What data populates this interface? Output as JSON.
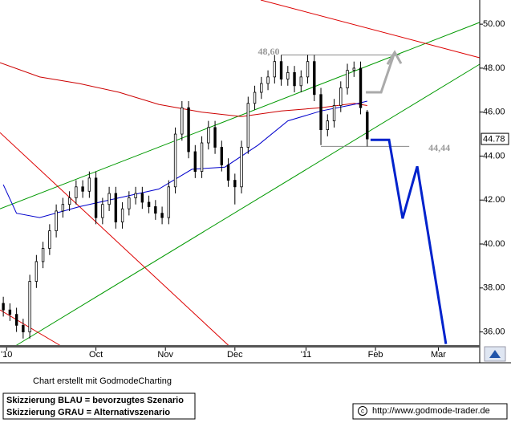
{
  "chart_data": {
    "type": "candlestick",
    "xlim": [
      0,
      145
    ],
    "ylim": [
      35.4,
      51.1
    ],
    "xticks": [
      {
        "value": 2,
        "label": "'10"
      },
      {
        "value": 29,
        "label": "Oct"
      },
      {
        "value": 50,
        "label": "Nov"
      },
      {
        "value": 71,
        "label": "Dec"
      },
      {
        "value": 92.5,
        "label": "'11"
      },
      {
        "value": 113.5,
        "label": "Feb"
      },
      {
        "value": 132.5,
        "label": "Mar"
      }
    ],
    "yticks": [
      {
        "value": 36,
        "label": "36.00"
      },
      {
        "value": 38,
        "label": "38.00"
      },
      {
        "value": 40,
        "label": "40.00"
      },
      {
        "value": 42,
        "label": "42.00"
      },
      {
        "value": 44,
        "label": "44.00"
      },
      {
        "value": 46,
        "label": "46.00"
      },
      {
        "value": 48,
        "label": "48.00"
      },
      {
        "value": 50,
        "label": "50.00"
      }
    ],
    "color": "#000000",
    "x": [
      1,
      3,
      5,
      7,
      9,
      11,
      13,
      15,
      17,
      19,
      21,
      23,
      25,
      27,
      29,
      31,
      33,
      35,
      37,
      39,
      41,
      43,
      45,
      47,
      49,
      51,
      53,
      55,
      57,
      59,
      61,
      63,
      65,
      67,
      69,
      71,
      73,
      75,
      77,
      79,
      81,
      83,
      85,
      87,
      89,
      91,
      93,
      95,
      97,
      99,
      101,
      103,
      105,
      107,
      109,
      111
    ],
    "open": [
      37.3,
      37.0,
      36.8,
      36.3,
      36.0,
      38.3,
      39.2,
      39.8,
      40.6,
      41.5,
      41.8,
      42.1,
      42.6,
      42.4,
      43.0,
      41.2,
      41.8,
      42.3,
      41.0,
      41.6,
      42.1,
      42.3,
      41.9,
      41.7,
      41.4,
      41.2,
      42.6,
      45.0,
      46.2,
      44.2,
      43.3,
      44.6,
      45.3,
      44.4,
      43.6,
      42.9,
      42.6,
      44.4,
      46.4,
      46.9,
      47.3,
      47.6,
      48.3,
      47.5,
      47.8,
      47.2,
      47.6,
      48.3,
      46.8,
      45.2,
      45.6,
      46.3,
      47.1,
      47.9,
      48.0,
      46.0
    ],
    "high": [
      37.6,
      37.3,
      37.1,
      36.6,
      38.6,
      39.5,
      40.1,
      40.9,
      41.8,
      42.1,
      42.4,
      42.9,
      42.9,
      43.3,
      43.3,
      42.1,
      42.6,
      42.6,
      41.9,
      42.4,
      42.6,
      42.6,
      42.2,
      42.0,
      41.7,
      42.9,
      45.3,
      46.5,
      46.5,
      44.5,
      44.9,
      45.6,
      45.6,
      44.7,
      43.9,
      43.2,
      44.7,
      46.7,
      47.2,
      47.6,
      47.9,
      48.6,
      48.6,
      48.1,
      48.1,
      47.9,
      48.6,
      48.6,
      47.1,
      45.9,
      46.6,
      47.4,
      48.2,
      48.3,
      48.3,
      46.1
    ],
    "low": [
      36.7,
      36.5,
      36.0,
      35.7,
      35.7,
      38.0,
      38.9,
      39.5,
      40.3,
      41.2,
      41.5,
      41.8,
      42.1,
      42.1,
      40.9,
      40.9,
      41.5,
      40.7,
      40.7,
      41.3,
      41.8,
      41.6,
      41.4,
      41.1,
      40.9,
      40.9,
      42.3,
      44.7,
      43.9,
      43.0,
      43.0,
      44.3,
      44.1,
      43.3,
      42.6,
      41.8,
      42.3,
      44.1,
      46.1,
      46.6,
      47.0,
      47.3,
      47.2,
      47.2,
      46.9,
      46.9,
      47.3,
      46.5,
      44.5,
      44.9,
      45.3,
      46.0,
      46.8,
      47.6,
      45.9,
      44.44
    ],
    "close": [
      37.0,
      36.8,
      36.3,
      36.0,
      38.3,
      39.2,
      39.8,
      40.6,
      41.5,
      41.8,
      42.1,
      42.6,
      42.4,
      43.0,
      41.2,
      41.8,
      42.3,
      41.0,
      41.6,
      42.1,
      42.3,
      41.9,
      41.7,
      41.4,
      41.2,
      42.6,
      45.0,
      46.2,
      44.2,
      43.3,
      44.6,
      45.3,
      44.4,
      43.6,
      42.9,
      42.6,
      44.4,
      46.4,
      46.9,
      47.3,
      47.6,
      48.3,
      47.5,
      47.8,
      47.2,
      47.6,
      48.3,
      46.8,
      45.2,
      45.6,
      46.3,
      47.1,
      47.9,
      48.0,
      46.2,
      44.78
    ],
    "series": [
      {
        "color": "#cc0000",
        "x": [
          0,
          12,
          24,
          36,
          48,
          61,
          73,
          85,
          97,
          107,
          111
        ],
        "values": [
          48.25,
          47.6,
          47.3,
          46.9,
          46.35,
          46.0,
          45.8,
          46.05,
          46.2,
          46.4,
          46.3
        ]
      },
      {
        "color": "#0000cc",
        "x": [
          1,
          5,
          12,
          24,
          36,
          48,
          58,
          68,
          78,
          87,
          97,
          107,
          111
        ],
        "values": [
          42.7,
          41.4,
          41.2,
          41.7,
          42.1,
          42.5,
          43.4,
          43.5,
          44.5,
          45.6,
          46.05,
          46.35,
          46.5
        ]
      }
    ],
    "trendlines": [
      {
        "color": "#009900",
        "x": [
          0,
          145
        ],
        "values": [
          41.6,
          50.08
        ]
      },
      {
        "color": "#009900",
        "x": [
          4.85,
          145
        ],
        "values": [
          35.38,
          48.18
        ]
      },
      {
        "color": "#dd0000",
        "x": [
          78.8,
          145
        ],
        "values": [
          51.1,
          48.47
        ]
      },
      {
        "color": "#dd0000",
        "x": [
          0,
          69.1
        ],
        "values": [
          45.07,
          35.38
        ]
      },
      {
        "color": "#dd0000",
        "x": [
          0,
          18.2
        ],
        "values": [
          37.0,
          35.38
        ]
      }
    ],
    "scenarios": [
      {
        "color": "#0022cc",
        "x": [
          112,
          117.6,
          121.7,
          126.1,
          134.8
        ],
        "values": [
          44.74,
          44.74,
          41.16,
          43.53,
          35.45
        ]
      },
      {
        "color": "#aaaaaa",
        "x": [
          110.6,
          115.2,
          119.3
        ],
        "values": [
          46.9,
          46.9,
          48.72
        ]
      }
    ],
    "annotations": [
      {
        "value": 48.6,
        "label": "48,60",
        "x": [
          85,
          121
        ]
      },
      {
        "value": 44.44,
        "label": "44,44",
        "x": [
          97,
          123.7
        ]
      }
    ],
    "last_price": 44.78
  },
  "footer": {
    "credit": "Chart erstellt mit GodmodeCharting",
    "legend_blue": "Skizzierung BLAU = bevorzugtes Szenario",
    "legend_gray": "Skizzierung GRAU = Alternativszenario",
    "url": "http://www.godmode-trader.de"
  }
}
